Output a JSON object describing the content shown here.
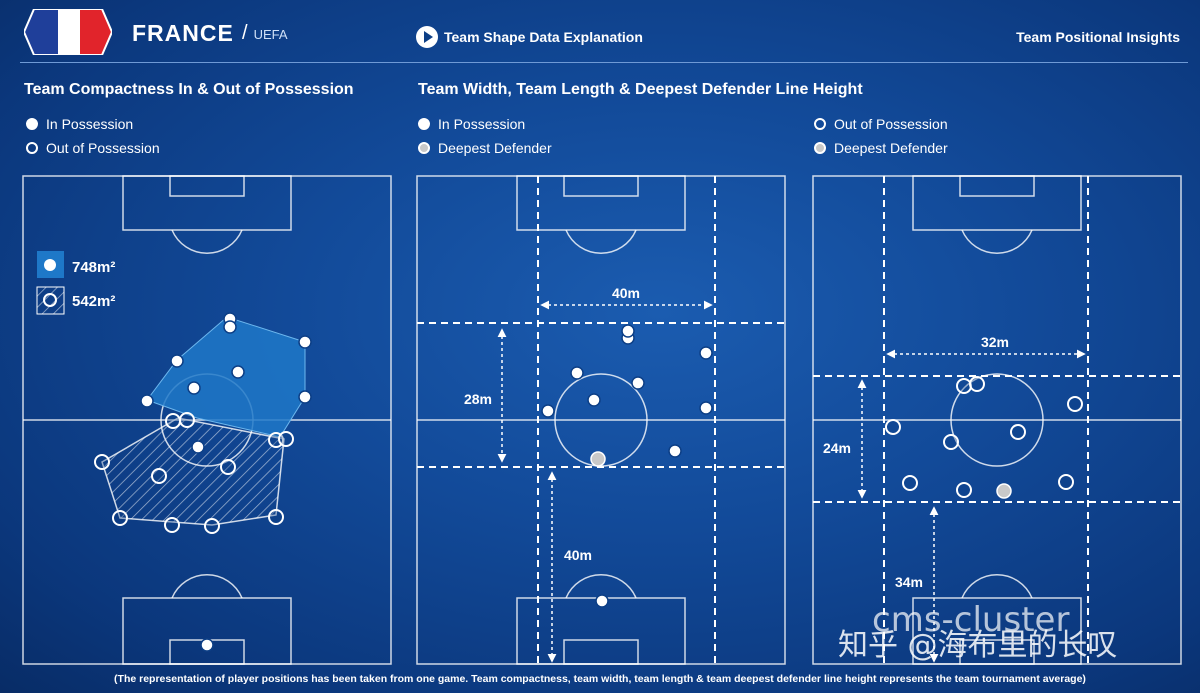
{
  "header": {
    "country": "FRANCE",
    "separator": "/",
    "confederation": "UEFA",
    "explanation_link": "Team Shape Data Explanation",
    "insights_title": "Team Positional Insights",
    "flag_colors": [
      "#1f3f9a",
      "#ffffff",
      "#e1242b"
    ]
  },
  "left_panel": {
    "title": "Team Compactness In & Out of Possession",
    "legend": [
      {
        "label": "In Possession",
        "marker": "filled-dot"
      },
      {
        "label": "Out of Possession",
        "marker": "hollow-dot"
      }
    ],
    "area_in": "748m²",
    "area_out": "542m²"
  },
  "middle_panel": {
    "title": "Team Width, Team Length & Deepest  Defender Line Height",
    "legend": [
      {
        "label": "In Possession",
        "marker": "filled-dot"
      },
      {
        "label": "Deepest Defender",
        "marker": "grey-dot"
      }
    ],
    "width_label": "40m",
    "length_label": "28m",
    "defender_line_label": "40m"
  },
  "right_panel": {
    "legend": [
      {
        "label": "Out of Possession",
        "marker": "hollow-dot"
      },
      {
        "label": "Deepest Defender",
        "marker": "grey-dot"
      }
    ],
    "width_label": "32m",
    "length_label": "24m",
    "defender_line_label": "34m"
  },
  "footer": "(The representation of player positions has been taken from one game. Team compactness, team width, team length & team deepest defender line height represents the team tournament average)",
  "watermark": {
    "line1": "cms-cluster",
    "line2": "知乎 @海布里的长叹"
  },
  "colors": {
    "background": "#0d3f86",
    "in_possession_area": "#1e78c8",
    "out_possession_hatch": "#ffffff",
    "deepest_defender": "#c9c9c9"
  }
}
